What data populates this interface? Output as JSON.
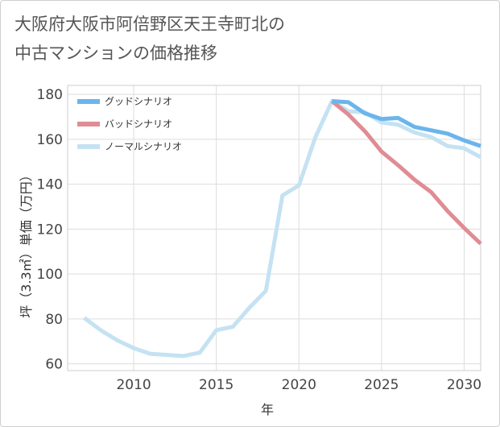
{
  "chart_data": {
    "type": "line",
    "title": "大阪府大阪市阿倍野区天王寺町北の中古マンションの価格推移",
    "xlabel": "年",
    "ylabel": "坪（3.3㎡）単価（万円）",
    "xlim": [
      2006,
      2031
    ],
    "ylim": [
      57,
      184
    ],
    "x_ticks": [
      2010,
      2015,
      2020,
      2025,
      2030
    ],
    "y_ticks": [
      60,
      80,
      100,
      120,
      140,
      160,
      180
    ],
    "grid": true,
    "legend_position": "top-left",
    "series": [
      {
        "name": "グッドシナリオ",
        "color": "#6bb5ec",
        "x": [
          2022,
          2023,
          2024,
          2025,
          2026,
          2027,
          2028,
          2029,
          2030,
          2031
        ],
        "y": [
          177,
          176.5,
          171.5,
          169,
          169.5,
          165.5,
          164,
          162.5,
          159.5,
          157
        ]
      },
      {
        "name": "バッドシナリオ",
        "color": "#e08c94",
        "x": [
          2022,
          2023,
          2024,
          2025,
          2026,
          2027,
          2028,
          2029,
          2030,
          2031
        ],
        "y": [
          177,
          171,
          163.5,
          154.5,
          148.5,
          142,
          136.5,
          128,
          120.5,
          113.5
        ]
      },
      {
        "name": "ノーマルシナリオ",
        "color": "#c4e2f2",
        "x": [
          2007,
          2008,
          2009,
          2010,
          2011,
          2012,
          2013,
          2014,
          2015,
          2016,
          2017,
          2018,
          2019,
          2020,
          2021,
          2022,
          2023,
          2024,
          2025,
          2026,
          2027,
          2028,
          2029,
          2030,
          2031
        ],
        "y": [
          80.5,
          75,
          70.5,
          67,
          64.5,
          64,
          63.5,
          65,
          75,
          76.5,
          85,
          92.5,
          135,
          139.5,
          161,
          177,
          172.5,
          172,
          167.5,
          166.5,
          163,
          161,
          157,
          156,
          152
        ]
      }
    ]
  }
}
